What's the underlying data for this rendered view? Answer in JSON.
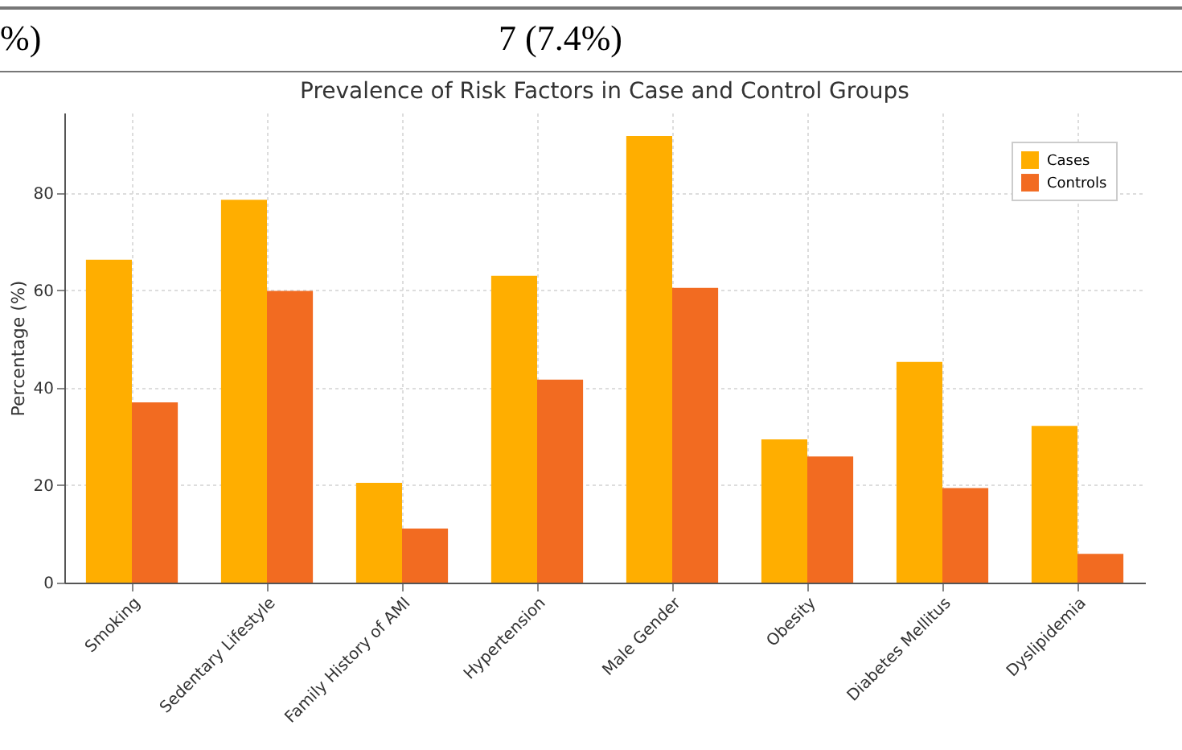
{
  "chart_data": {
    "type": "bar",
    "title": "Prevalence of Risk Factors in Case and Control Groups",
    "ylabel": "Percentage (%)",
    "categories": [
      "Smoking",
      "Sedentary Lifestyle",
      "Family History of AMI",
      "Hypertension",
      "Male Gender",
      "Obesity",
      "Diabetes Mellitus",
      "Dyslipidemia"
    ],
    "series": [
      {
        "name": "Cases",
        "color": "#ffae00",
        "values": [
          66.3,
          78.6,
          20.5,
          63,
          91.7,
          29.4,
          45.3,
          32.2
        ]
      },
      {
        "name": "Controls",
        "color": "#f26b21",
        "values": [
          37,
          59.9,
          11.1,
          41.7,
          60.5,
          25.9,
          19.4,
          5.9
        ]
      }
    ],
    "ylim": [
      0,
      96.5
    ],
    "yticks": [
      0,
      20,
      40,
      60,
      80
    ],
    "grid": true,
    "legend": "top right",
    "annotations": [
      "%)",
      "7 (7.4%)"
    ]
  }
}
